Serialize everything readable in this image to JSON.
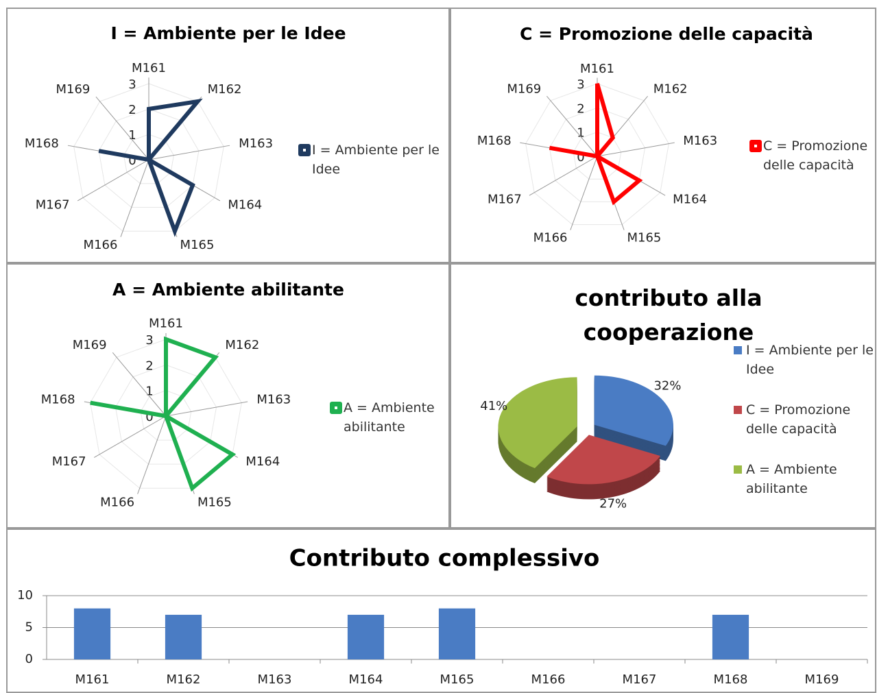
{
  "chart_data": [
    {
      "type": "radar",
      "title": "I = Ambiente per le Idee",
      "categories": [
        "M161",
        "M162",
        "M163",
        "M164",
        "M165",
        "M166",
        "M167",
        "M168",
        "M169"
      ],
      "series": [
        {
          "name": "I = Ambiente per le Idee",
          "color": "#1f3a5f",
          "values": [
            2,
            3,
            0,
            2,
            3,
            0,
            0,
            2,
            0
          ]
        }
      ],
      "ylim": [
        0,
        3
      ],
      "yticks": [
        0,
        1,
        2,
        3
      ]
    },
    {
      "type": "radar",
      "title": "C = Promozione delle capacità",
      "categories": [
        "M161",
        "M162",
        "M163",
        "M164",
        "M165",
        "M166",
        "M167",
        "M168",
        "M169"
      ],
      "series": [
        {
          "name": "C = Promozione delle capacità",
          "color": "#ff0000",
          "values": [
            3,
            1,
            0,
            2,
            2,
            0,
            0,
            2,
            0
          ]
        }
      ],
      "ylim": [
        0,
        3
      ],
      "yticks": [
        0,
        1,
        2,
        3
      ]
    },
    {
      "type": "radar",
      "title": "A = Ambiente abilitante",
      "categories": [
        "M161",
        "M162",
        "M163",
        "M164",
        "M165",
        "M166",
        "M167",
        "M168",
        "M169"
      ],
      "series": [
        {
          "name": "A = Ambiente abilitante",
          "color": "#1fb050",
          "values": [
            3,
            3,
            0,
            3,
            3,
            0,
            0,
            3,
            0
          ]
        }
      ],
      "ylim": [
        0,
        3
      ],
      "yticks": [
        0,
        1,
        2,
        3
      ]
    },
    {
      "type": "pie",
      "title": "contributo alla cooperazione",
      "categories": [
        "I = Ambiente per le Idee",
        "C = Promozione delle capacità",
        "A = Ambiente abilitante"
      ],
      "values": [
        32,
        27,
        41
      ],
      "value_labels": [
        "32%",
        "27%",
        "41%"
      ],
      "colors": [
        "#4a7cc4",
        "#c0474a",
        "#9bbb45"
      ]
    },
    {
      "type": "bar",
      "title": "Contributo complessivo",
      "categories": [
        "M161",
        "M162",
        "M163",
        "M164",
        "M165",
        "M166",
        "M167",
        "M168",
        "M169"
      ],
      "values": [
        8,
        7,
        0,
        7,
        8,
        0,
        0,
        7,
        0
      ],
      "color": "#4a7cc4",
      "ylim": [
        0,
        10
      ],
      "yticks": [
        0,
        5,
        10
      ],
      "grid": true
    }
  ]
}
